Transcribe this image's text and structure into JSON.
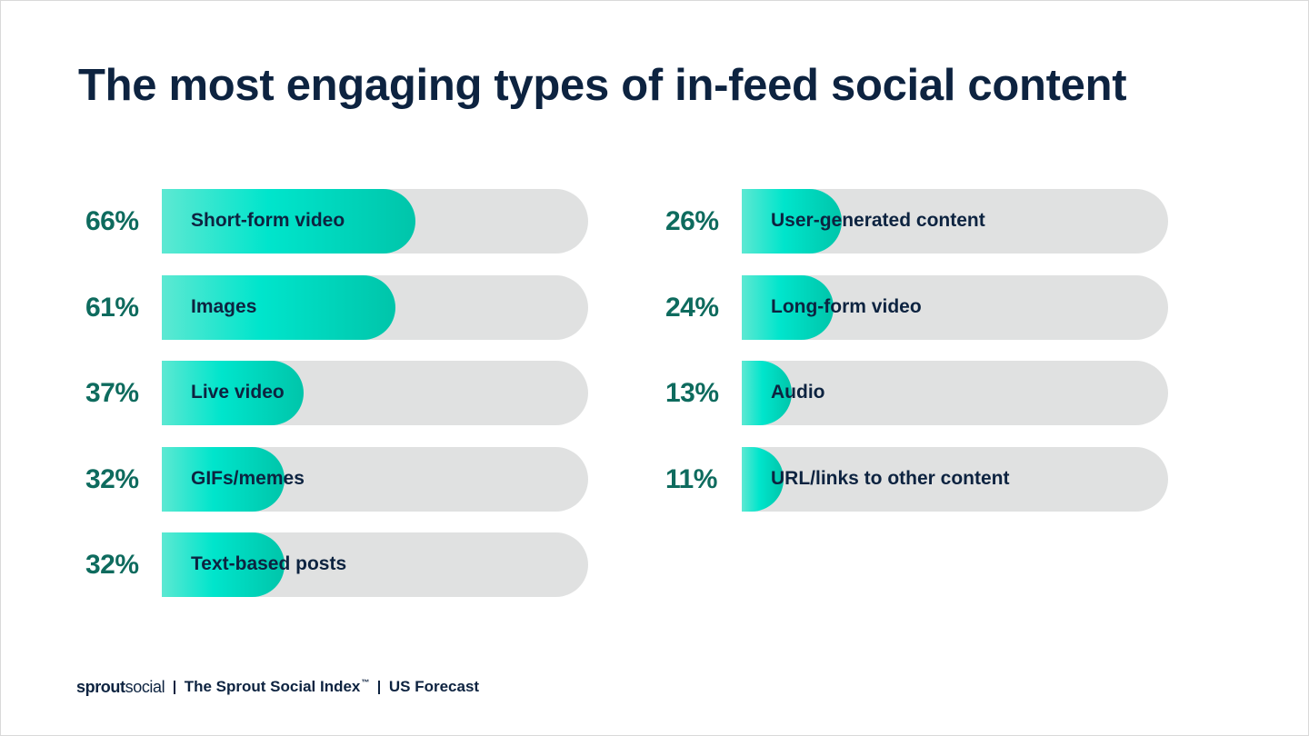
{
  "title": "The most engaging types of in-feed social content",
  "chart_data": {
    "type": "bar",
    "orientation": "horizontal",
    "title": "The most engaging types of in-feed social content",
    "xlim": [
      0,
      100
    ],
    "unit": "%",
    "columns": [
      {
        "items": [
          {
            "label": "Short-form video",
            "value": 66,
            "display": "66%"
          },
          {
            "label": "Images",
            "value": 61,
            "display": "61%"
          },
          {
            "label": "Live video",
            "value": 37,
            "display": "37%"
          },
          {
            "label": "GIFs/memes",
            "value": 32,
            "display": "32%"
          },
          {
            "label": "Text-based posts",
            "value": 32,
            "display": "32%"
          }
        ]
      },
      {
        "items": [
          {
            "label": "User-generated content",
            "value": 26,
            "display": "26%"
          },
          {
            "label": "Long-form video",
            "value": 24,
            "display": "24%"
          },
          {
            "label": "Audio",
            "value": 13,
            "display": "13%"
          },
          {
            "label": "URL/links to other content",
            "value": 11,
            "display": "11%"
          }
        ]
      }
    ]
  },
  "colors": {
    "title": "#0d2340",
    "percent": "#0e6b5e",
    "track": "#e0e1e1",
    "fill_start": "#5de8d2",
    "fill_mid": "#00e5cc",
    "fill_end": "#00c5aa"
  },
  "footer": {
    "logo_bold": "sprout",
    "logo_normal": "social",
    "index_text": "The Sprout Social Index",
    "trademark": "™",
    "forecast_text": "US Forecast"
  }
}
